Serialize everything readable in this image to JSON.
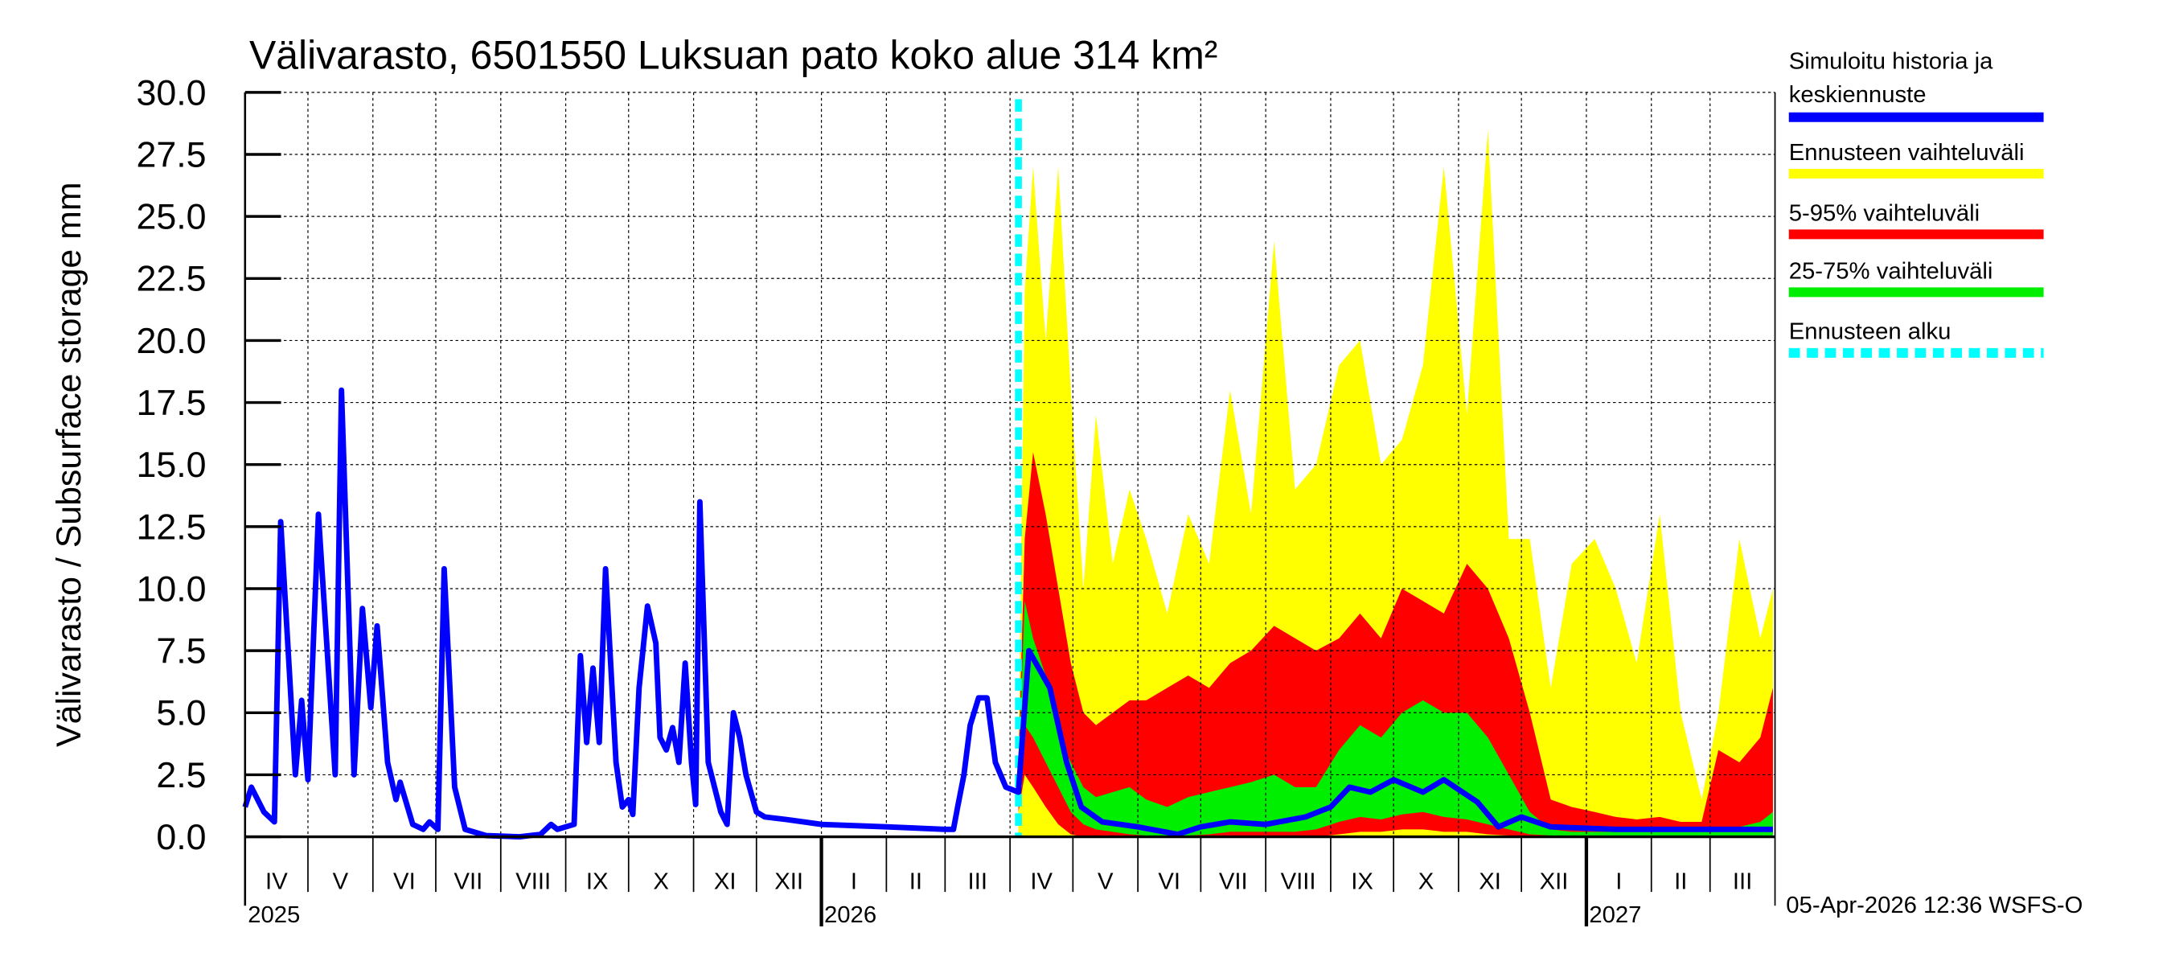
{
  "chart_data": {
    "type": "area",
    "title": "Välivarasto, 6501550 Luksuan pato koko alue 314 km²",
    "ylabel": "Välivarasto / Subsurface storage  mm",
    "xlabel": "",
    "ylim": [
      0,
      30
    ],
    "xlim": [
      "2025-04-01",
      "2027-04-01"
    ],
    "grid": true,
    "legend_placement": "right",
    "yticks": [
      "0.0",
      "2.5",
      "5.0",
      "7.5",
      "10.0",
      "12.5",
      "15.0",
      "17.5",
      "20.0",
      "22.5",
      "25.0",
      "27.5",
      "30.0"
    ],
    "months": [
      {
        "label": "IV",
        "start": "2025-04-01"
      },
      {
        "label": "V",
        "start": "2025-05-01"
      },
      {
        "label": "VI",
        "start": "2025-06-01"
      },
      {
        "label": "VII",
        "start": "2025-07-01"
      },
      {
        "label": "VIII",
        "start": "2025-08-01"
      },
      {
        "label": "IX",
        "start": "2025-09-01"
      },
      {
        "label": "X",
        "start": "2025-10-01"
      },
      {
        "label": "XI",
        "start": "2025-11-01"
      },
      {
        "label": "XII",
        "start": "2025-12-01"
      },
      {
        "label": "I",
        "start": "2026-01-01"
      },
      {
        "label": "II",
        "start": "2026-02-01"
      },
      {
        "label": "III",
        "start": "2026-03-01"
      },
      {
        "label": "IV",
        "start": "2026-04-01"
      },
      {
        "label": "V",
        "start": "2026-05-01"
      },
      {
        "label": "VI",
        "start": "2026-06-01"
      },
      {
        "label": "VII",
        "start": "2026-07-01"
      },
      {
        "label": "VIII",
        "start": "2026-08-01"
      },
      {
        "label": "IX",
        "start": "2026-09-01"
      },
      {
        "label": "X",
        "start": "2026-10-01"
      },
      {
        "label": "XI",
        "start": "2026-11-01"
      },
      {
        "label": "XII",
        "start": "2026-12-01"
      },
      {
        "label": "I",
        "start": "2027-01-01"
      },
      {
        "label": "II",
        "start": "2027-02-01"
      },
      {
        "label": "III",
        "start": "2027-03-01"
      }
    ],
    "years": [
      {
        "label": "2025",
        "start": "2025-04-01"
      },
      {
        "label": "2026",
        "start": "2026-01-01"
      },
      {
        "label": "2027",
        "start": "2027-01-01"
      }
    ],
    "forecast_start": "2026-04-05",
    "colors": {
      "median": "#0000ff",
      "full_range": "#ffff00",
      "p5_95": "#ff0000",
      "p25_75": "#00ee00",
      "forecast_start": "#00ffff"
    },
    "legend": [
      {
        "label": "Simuloitu historia ja keskiennuste",
        "color": "#0000ff",
        "style": "solid"
      },
      {
        "label": "Ennusteen vaihteluväli",
        "color": "#ffff00",
        "style": "solid"
      },
      {
        "label": "5-95% vaihteluväli",
        "color": "#ff0000",
        "style": "solid"
      },
      {
        "label": "25-75% vaihteluväli",
        "color": "#00ee00",
        "style": "solid"
      },
      {
        "label": "Ennusteen alku",
        "color": "#00ffff",
        "style": "dashed"
      }
    ],
    "median_series": [
      [
        "2025-04-01",
        1.2
      ],
      [
        "2025-04-04",
        2.0
      ],
      [
        "2025-04-10",
        1.0
      ],
      [
        "2025-04-15",
        0.6
      ],
      [
        "2025-04-18",
        12.7
      ],
      [
        "2025-04-25",
        2.5
      ],
      [
        "2025-04-28",
        5.5
      ],
      [
        "2025-05-01",
        2.3
      ],
      [
        "2025-05-06",
        13.0
      ],
      [
        "2025-05-14",
        2.5
      ],
      [
        "2025-05-17",
        18.0
      ],
      [
        "2025-05-23",
        2.5
      ],
      [
        "2025-05-27",
        9.2
      ],
      [
        "2025-05-31",
        5.2
      ],
      [
        "2025-06-03",
        8.5
      ],
      [
        "2025-06-08",
        3.0
      ],
      [
        "2025-06-12",
        1.5
      ],
      [
        "2025-06-14",
        2.2
      ],
      [
        "2025-06-20",
        0.5
      ],
      [
        "2025-06-25",
        0.3
      ],
      [
        "2025-06-28",
        0.6
      ],
      [
        "2025-07-02",
        0.3
      ],
      [
        "2025-07-05",
        10.8
      ],
      [
        "2025-07-10",
        2.0
      ],
      [
        "2025-07-15",
        0.3
      ],
      [
        "2025-07-25",
        0.05
      ],
      [
        "2025-08-10",
        0.0
      ],
      [
        "2025-08-20",
        0.1
      ],
      [
        "2025-08-25",
        0.5
      ],
      [
        "2025-08-28",
        0.3
      ],
      [
        "2025-09-05",
        0.5
      ],
      [
        "2025-09-08",
        7.3
      ],
      [
        "2025-09-11",
        3.8
      ],
      [
        "2025-09-14",
        6.8
      ],
      [
        "2025-09-17",
        3.8
      ],
      [
        "2025-09-20",
        10.8
      ],
      [
        "2025-09-25",
        3.0
      ],
      [
        "2025-09-28",
        1.2
      ],
      [
        "2025-10-01",
        1.5
      ],
      [
        "2025-10-03",
        0.9
      ],
      [
        "2025-10-06",
        6.0
      ],
      [
        "2025-10-10",
        9.3
      ],
      [
        "2025-10-14",
        7.8
      ],
      [
        "2025-10-16",
        4.0
      ],
      [
        "2025-10-19",
        3.5
      ],
      [
        "2025-10-22",
        4.4
      ],
      [
        "2025-10-25",
        3.0
      ],
      [
        "2025-10-28",
        7.0
      ],
      [
        "2025-10-31",
        3.0
      ],
      [
        "2025-11-02",
        1.3
      ],
      [
        "2025-11-04",
        13.5
      ],
      [
        "2025-11-08",
        3.0
      ],
      [
        "2025-11-14",
        1.0
      ],
      [
        "2025-11-17",
        0.5
      ],
      [
        "2025-11-20",
        5.0
      ],
      [
        "2025-11-23",
        4.0
      ],
      [
        "2025-11-26",
        2.5
      ],
      [
        "2025-12-01",
        1.0
      ],
      [
        "2025-12-05",
        0.8
      ],
      [
        "2025-12-15",
        0.7
      ],
      [
        "2026-01-01",
        0.5
      ],
      [
        "2026-02-01",
        0.4
      ],
      [
        "2026-03-01",
        0.3
      ],
      [
        "2026-03-05",
        0.3
      ],
      [
        "2026-03-07",
        1.2
      ],
      [
        "2026-03-10",
        2.5
      ],
      [
        "2026-03-13",
        4.5
      ],
      [
        "2026-03-17",
        5.6
      ],
      [
        "2026-03-21",
        5.6
      ],
      [
        "2026-03-25",
        3.0
      ],
      [
        "2026-03-30",
        2.0
      ],
      [
        "2026-04-05",
        1.8
      ],
      [
        "2026-04-10",
        7.5
      ],
      [
        "2026-04-20",
        6.0
      ],
      [
        "2026-04-28",
        3.0
      ],
      [
        "2026-05-05",
        1.2
      ],
      [
        "2026-05-15",
        0.6
      ],
      [
        "2026-06-01",
        0.4
      ],
      [
        "2026-06-20",
        0.1
      ],
      [
        "2026-07-01",
        0.4
      ],
      [
        "2026-07-15",
        0.6
      ],
      [
        "2026-08-01",
        0.5
      ],
      [
        "2026-08-20",
        0.8
      ],
      [
        "2026-09-01",
        1.2
      ],
      [
        "2026-09-10",
        2.0
      ],
      [
        "2026-09-20",
        1.8
      ],
      [
        "2026-10-01",
        2.3
      ],
      [
        "2026-10-15",
        1.8
      ],
      [
        "2026-10-25",
        2.3
      ],
      [
        "2026-11-10",
        1.4
      ],
      [
        "2026-11-20",
        0.4
      ],
      [
        "2026-12-01",
        0.8
      ],
      [
        "2026-12-15",
        0.4
      ],
      [
        "2027-01-15",
        0.3
      ],
      [
        "2027-03-31",
        0.3
      ]
    ],
    "bands_columns": [
      "date",
      "full_max",
      "p95",
      "p75",
      "p25",
      "p5"
    ],
    "bands": [
      [
        "2026-04-05",
        3,
        3,
        2.5,
        1.5,
        1.0
      ],
      [
        "2026-04-08",
        22,
        12,
        9.5,
        4.5,
        2.5
      ],
      [
        "2026-04-12",
        27,
        15.5,
        8,
        4,
        2
      ],
      [
        "2026-04-18",
        20,
        13,
        6.5,
        3,
        1.2
      ],
      [
        "2026-04-24",
        27,
        10,
        4,
        2,
        0.5
      ],
      [
        "2026-04-30",
        18,
        7,
        3,
        1,
        0.1
      ],
      [
        "2026-05-06",
        10,
        5,
        2,
        0.5,
        0
      ],
      [
        "2026-05-12",
        17,
        4.5,
        1.6,
        0.3,
        0
      ],
      [
        "2026-05-20",
        11,
        5,
        1.8,
        0.2,
        0
      ],
      [
        "2026-05-28",
        14,
        5.5,
        2,
        0.1,
        0
      ],
      [
        "2026-06-05",
        12,
        5.5,
        1.5,
        0.05,
        0
      ],
      [
        "2026-06-15",
        9,
        6,
        1.2,
        0.05,
        0
      ],
      [
        "2026-06-25",
        13,
        6.5,
        1.6,
        0.05,
        0
      ],
      [
        "2026-07-05",
        11,
        6,
        1.8,
        0.1,
        0
      ],
      [
        "2026-07-15",
        18,
        7,
        2,
        0.2,
        0
      ],
      [
        "2026-07-25",
        13,
        7.5,
        2.2,
        0.2,
        0
      ],
      [
        "2026-08-05",
        24,
        8.5,
        2.5,
        0.2,
        0
      ],
      [
        "2026-08-15",
        14,
        8,
        2,
        0.2,
        0
      ],
      [
        "2026-08-25",
        15,
        7.5,
        2,
        0.3,
        0
      ],
      [
        "2026-09-05",
        19,
        8,
        3.5,
        0.6,
        0.1
      ],
      [
        "2026-09-15",
        20,
        9,
        4.5,
        0.8,
        0.2
      ],
      [
        "2026-09-25",
        15,
        8,
        4,
        0.7,
        0.2
      ],
      [
        "2026-10-05",
        16,
        10,
        5,
        0.9,
        0.3
      ],
      [
        "2026-10-15",
        19,
        9.5,
        5.5,
        1,
        0.3
      ],
      [
        "2026-10-25",
        27,
        9,
        5,
        0.8,
        0.2
      ],
      [
        "2026-11-05",
        17,
        11,
        5,
        0.7,
        0.2
      ],
      [
        "2026-11-15",
        28.5,
        10,
        4,
        0.5,
        0.1
      ],
      [
        "2026-11-25",
        12,
        8,
        2.5,
        0.3,
        0.05
      ],
      [
        "2026-12-05",
        12,
        5,
        1,
        0.1,
        0
      ],
      [
        "2026-12-15",
        6,
        1.5,
        0.3,
        0.05,
        0
      ],
      [
        "2026-12-25",
        11,
        1.2,
        0.2,
        0,
        0
      ],
      [
        "2027-01-05",
        12,
        1.0,
        0.2,
        0,
        0
      ],
      [
        "2027-01-15",
        10,
        0.8,
        0.2,
        0,
        0
      ],
      [
        "2027-01-25",
        7,
        0.7,
        0.2,
        0,
        0
      ],
      [
        "2027-02-05",
        13,
        0.8,
        0.2,
        0,
        0
      ],
      [
        "2027-02-15",
        5,
        0.6,
        0.2,
        0,
        0
      ],
      [
        "2027-02-25",
        1.5,
        0.6,
        0.2,
        0,
        0
      ],
      [
        "2027-03-05",
        5,
        3.5,
        0.3,
        0,
        0
      ],
      [
        "2027-03-15",
        12,
        3,
        0.4,
        0,
        0
      ],
      [
        "2027-03-25",
        8,
        4,
        0.6,
        0,
        0
      ],
      [
        "2027-03-31",
        10,
        6,
        1.0,
        0,
        0
      ]
    ]
  },
  "footer": {
    "timestamp": "05-Apr-2026 12:36 WSFS-O"
  }
}
